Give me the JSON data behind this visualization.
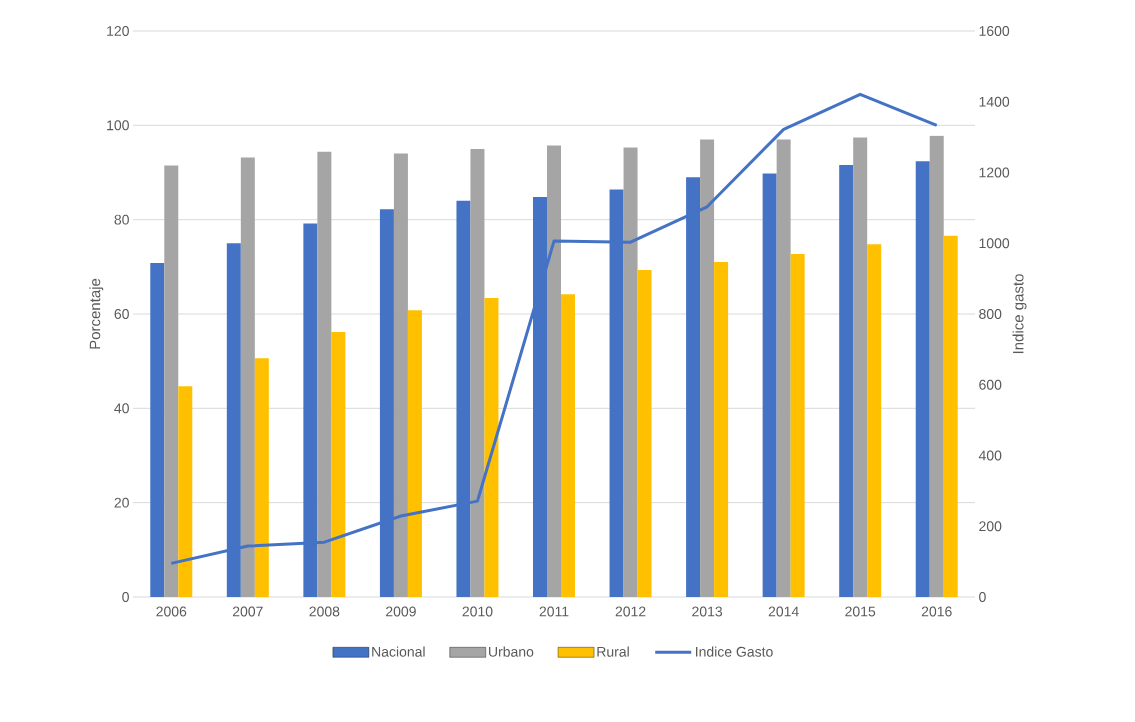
{
  "chart_data": {
    "type": "bar",
    "ylabel": "Porcentaje",
    "y2label": "Indice gasto",
    "categories": [
      "2006",
      "2007",
      "2008",
      "2009",
      "2010",
      "2011",
      "2012",
      "2013",
      "2014",
      "2015",
      "2016"
    ],
    "series": [
      {
        "name": "Nacional",
        "color": "#4472c4",
        "values": [
          70.8,
          75,
          79.2,
          82.2,
          84,
          84.8,
          86.4,
          89,
          89.8,
          91.6,
          92.4
        ]
      },
      {
        "name": "Urbano",
        "color": "#a5a5a5",
        "values": [
          91.5,
          93.2,
          94.4,
          94,
          95,
          95.7,
          95.3,
          97,
          97,
          97.4,
          97.8
        ]
      },
      {
        "name": "Rural",
        "color": "#ffc000",
        "values": [
          44.7,
          50.6,
          56.2,
          60.8,
          63.4,
          64.2,
          69.3,
          71,
          72.7,
          74.8,
          76.6
        ]
      },
      {
        "name": "Indice Gasto",
        "color": "#4472c4",
        "type": "line",
        "axis": "y2",
        "values": [
          95,
          144,
          155,
          229,
          271,
          1006,
          1003,
          1103,
          1322,
          1421,
          1333
        ]
      }
    ],
    "ylim": [
      0,
      120
    ],
    "yticks": [
      0,
      20,
      40,
      60,
      80,
      100,
      120
    ],
    "y2lim": [
      0,
      1600
    ],
    "y2ticks": [
      0,
      200,
      400,
      600,
      800,
      1000,
      1200,
      1400,
      1600
    ],
    "grid": "y",
    "legend": "bottom"
  }
}
